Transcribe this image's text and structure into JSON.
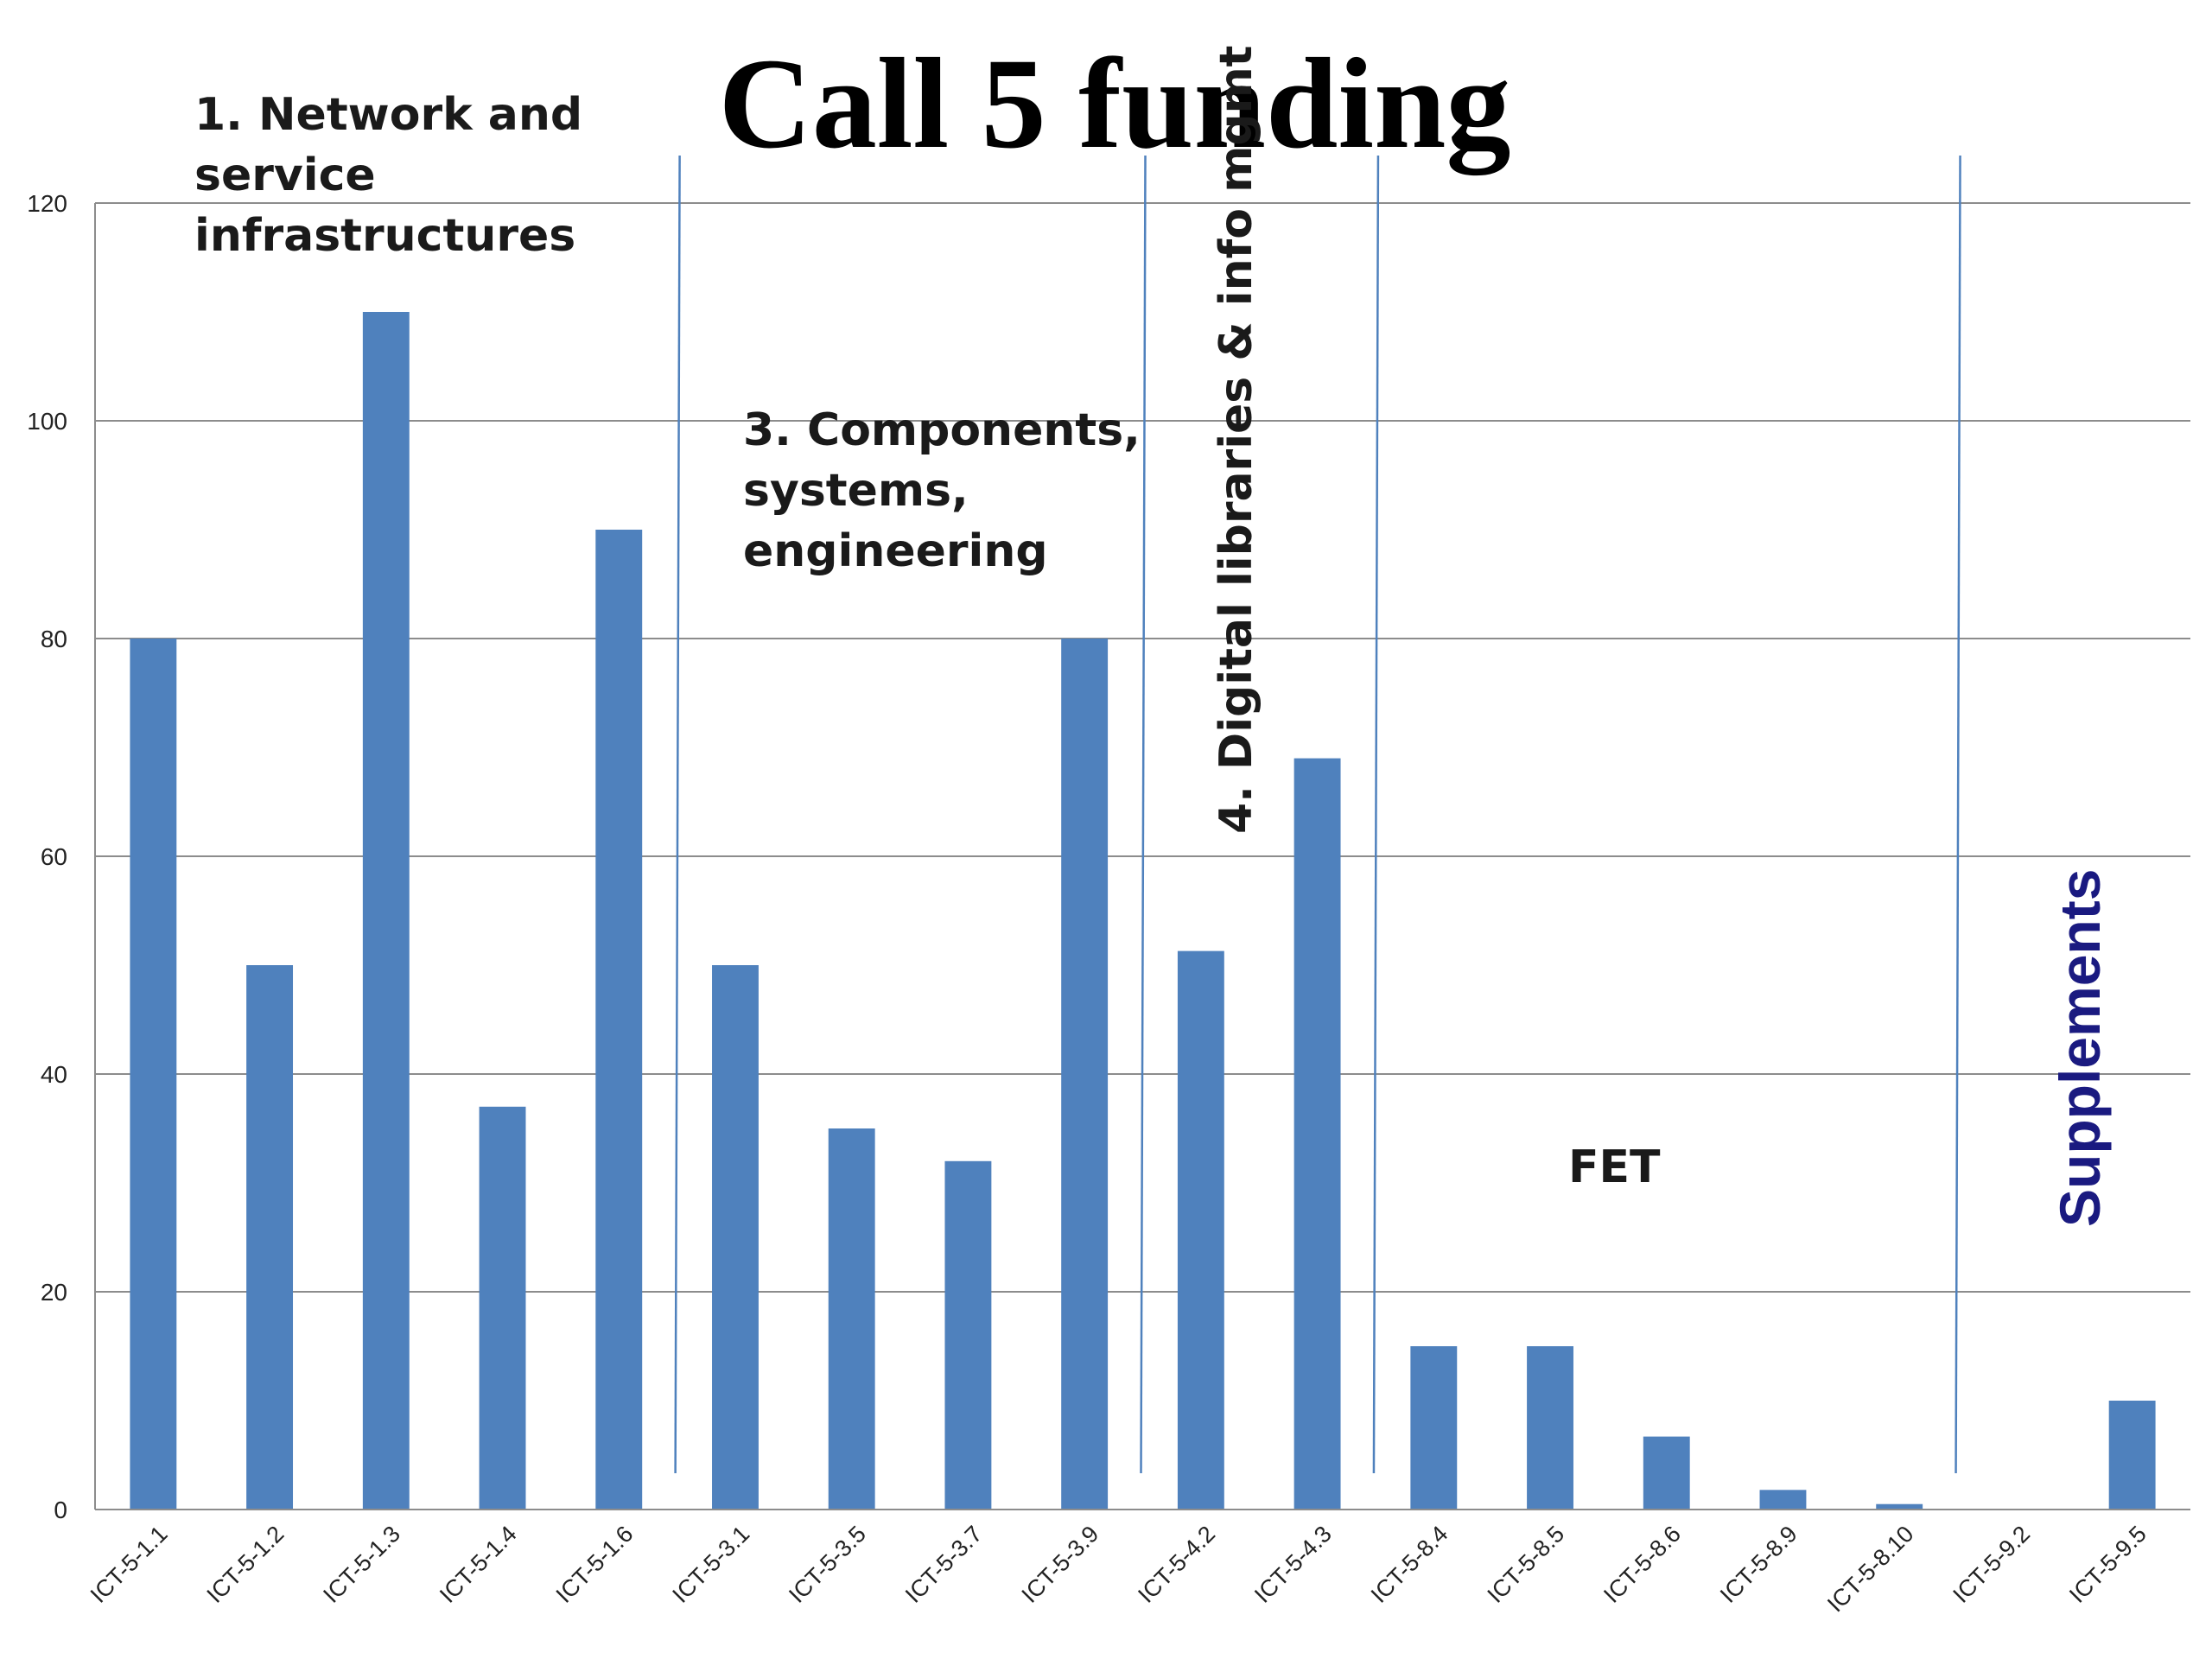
{
  "chart_data": {
    "type": "bar",
    "title": "Call 5 funding",
    "xlabel": "",
    "ylabel": "",
    "ylim": [
      0,
      120
    ],
    "yticks": [
      0,
      20,
      40,
      60,
      80,
      100,
      120
    ],
    "grid": true,
    "bar_color": "#4f81bd",
    "categories": [
      "ICT-5-1.1",
      "ICT-5-1.2",
      "ICT-5-1.3",
      "ICT-5-1.4",
      "ICT-5-1.6",
      "ICT-5-3.1",
      "ICT-5-3.5",
      "ICT-5-3.7",
      "ICT-5-3.9",
      "ICT-5-4.2",
      "ICT-5-4.3",
      "ICT-5-8.4",
      "ICT-5-8.5",
      "ICT-5-8.6",
      "ICT-5-8.9",
      "ICT-5-8.10",
      "ICT-5-9.2",
      "ICT-5-9.5"
    ],
    "values": [
      80,
      50,
      110,
      37,
      90,
      50,
      35,
      32,
      80,
      51.3,
      69,
      15,
      15,
      6.7,
      1.8,
      0.5,
      0,
      10
    ],
    "sections": [
      {
        "label_lines": [
          "1. Network and",
          "service",
          "infrastructures"
        ],
        "first_category_index": 0
      },
      {
        "label_lines": [
          "3. Components,",
          "systems,",
          "engineering"
        ],
        "first_category_index": 5
      },
      {
        "label_lines": [
          "4. Digital libraries & info mgmt"
        ],
        "first_category_index": 9
      },
      {
        "label_lines": [
          "FET"
        ],
        "first_category_index": 11
      },
      {
        "label_lines": [
          "Supplements"
        ],
        "first_category_index": 16
      }
    ]
  }
}
